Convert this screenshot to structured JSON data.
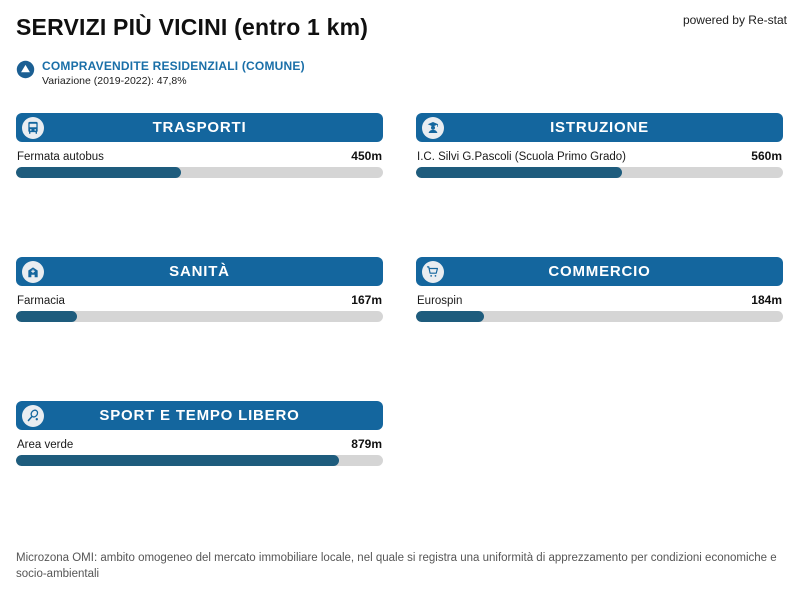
{
  "page": {
    "title": "SERVIZI PIÙ VICINI (entro 1 km)",
    "powered_by": "powered by Re-stat",
    "footer": "Microzona OMI: ambito omogeneo del mercato immobiliare locale, nel quale si registra una uniformità di apprezzamento per condizioni economiche e socio-ambientali"
  },
  "subheader": {
    "title": "COMPRAVENDITE RESIDENZIALI (COMUNE)",
    "subtitle": "Variazione (2019-2022): 47,8%",
    "icon": "triangle-up-circle-icon"
  },
  "colors": {
    "header_blue": "#14669e",
    "bar_fill": "#1e5c7d",
    "bar_track": "#d5d5d5",
    "accent_blue": "#1a6fa8",
    "badge_navy": "#1b5f93"
  },
  "panels": [
    {
      "title": "TRASPORTI",
      "icon": "bus-icon",
      "service": "Fermata autobus",
      "distance_label": "450m",
      "value": 450,
      "max": 1000
    },
    {
      "title": "ISTRUZIONE",
      "icon": "student-icon",
      "service": "I.C. Silvi G.Pascoli (Scuola Primo Grado)",
      "distance_label": "560m",
      "value": 560,
      "max": 1000
    },
    {
      "title": "SANITÀ",
      "icon": "hospital-icon",
      "service": "Farmacia",
      "distance_label": "167m",
      "value": 167,
      "max": 1000
    },
    {
      "title": "COMMERCIO",
      "icon": "cart-icon",
      "service": "Eurospin",
      "distance_label": "184m",
      "value": 184,
      "max": 1000
    },
    {
      "title": "SPORT E TEMPO LIBERO",
      "icon": "tennis-racket-icon",
      "service": "Area verde",
      "distance_label": "879m",
      "value": 879,
      "max": 1000
    }
  ],
  "chart_data": {
    "type": "bar",
    "title": "SERVIZI PIÙ VICINI (entro 1 km)",
    "categories": [
      "TRASPORTI",
      "ISTRUZIONE",
      "SANITÀ",
      "COMMERCIO",
      "SPORT E TEMPO LIBERO"
    ],
    "labels": [
      "Fermata autobus",
      "I.C. Silvi G.Pascoli (Scuola Primo Grado)",
      "Farmacia",
      "Eurospin",
      "Area verde"
    ],
    "values": [
      450,
      560,
      167,
      184,
      879
    ],
    "unit": "m",
    "xlim": [
      0,
      1000
    ],
    "annotation": "Variazione (2019-2022): 47,8%",
    "legend": "none",
    "grid": false
  }
}
